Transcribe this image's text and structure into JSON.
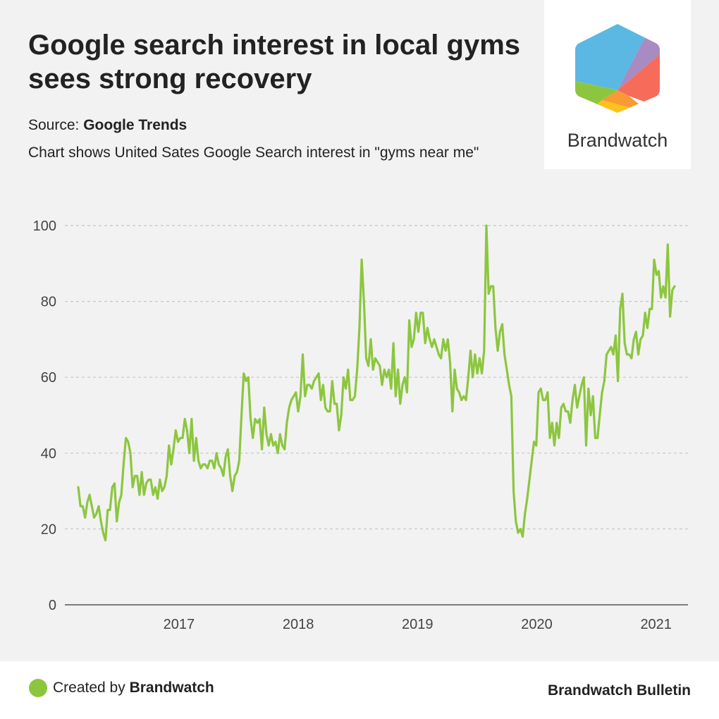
{
  "header": {
    "title": "Google search interest in local gyms sees strong recovery",
    "source_label": "Source:",
    "source_name": "Google Trends",
    "description": "Chart shows United Sates Google Search interest in \"gyms near me\""
  },
  "logo": {
    "name": "Brandwatch",
    "colors": [
      "#5BB8E2",
      "#A78BC2",
      "#F76B5B",
      "#F89A35",
      "#FBC21B",
      "#8CC63F"
    ]
  },
  "footer": {
    "created_label": "Created by",
    "created_brand": "Brandwatch",
    "right_text": "Brandwatch Bulletin",
    "dot_color": "#8CC63F"
  },
  "chart_data": {
    "type": "line",
    "x_unit": "year",
    "x_start": 2016.62,
    "x_end": 2021.62,
    "xticks": [
      2017,
      2018,
      2019,
      2020,
      2021
    ],
    "xtick_labels": [
      "2017",
      "2018",
      "2019",
      "2020",
      "2021"
    ],
    "yticks": [
      0,
      20,
      40,
      60,
      80,
      100
    ],
    "ylim": [
      0,
      100
    ],
    "grid": "horizontal dashed",
    "line_color": "#8CC63F",
    "values": [
      31,
      26,
      26,
      23,
      27,
      29,
      26,
      23,
      24,
      26,
      22,
      19,
      17,
      25,
      25,
      31,
      32,
      22,
      27,
      29,
      37,
      44,
      43,
      40,
      31,
      34,
      34,
      29,
      35,
      29,
      32,
      33,
      33,
      29,
      31,
      28,
      33,
      30,
      31,
      34,
      42,
      37,
      41,
      46,
      43,
      44,
      44,
      49,
      46,
      40,
      49,
      38,
      44,
      38,
      36,
      37,
      37,
      36,
      38,
      38,
      36,
      40,
      37,
      36,
      34,
      39,
      41,
      34,
      30,
      34,
      35,
      38,
      50,
      61,
      59,
      60,
      49,
      44,
      49,
      48,
      49,
      41,
      52,
      45,
      42,
      45,
      42,
      43,
      40,
      45,
      42,
      41,
      48,
      52,
      54,
      55,
      56,
      51,
      55,
      66,
      55,
      58,
      58,
      57,
      59,
      60,
      61,
      54,
      58,
      52,
      51,
      51,
      59,
      53,
      53,
      46,
      50,
      60,
      57,
      62,
      54,
      54,
      55,
      62,
      73,
      91,
      80,
      65,
      63,
      70,
      62,
      65,
      64,
      63,
      58,
      62,
      60,
      62,
      57,
      69,
      55,
      62,
      53,
      58,
      60,
      56,
      75,
      68,
      70,
      77,
      72,
      77,
      77,
      69,
      73,
      70,
      68,
      70,
      68,
      66,
      65,
      70,
      67,
      70,
      64,
      51,
      62,
      57,
      56,
      54,
      55,
      54,
      60,
      67,
      60,
      66,
      61,
      65,
      61,
      67,
      100,
      82,
      84,
      84,
      73,
      67,
      72,
      74,
      66,
      62,
      58,
      55,
      30,
      22,
      19,
      20,
      18,
      24,
      28,
      33,
      38,
      43,
      42,
      56,
      57,
      54,
      54,
      56,
      44,
      48,
      42,
      48,
      44,
      52,
      53,
      51,
      51,
      48,
      54,
      58,
      52,
      55,
      58,
      60,
      42,
      57,
      50,
      55,
      44,
      44,
      50,
      56,
      59,
      66,
      67,
      68,
      66,
      71,
      59,
      78,
      82,
      69,
      66,
      66,
      65,
      70,
      72,
      66,
      70,
      71,
      77,
      73,
      78,
      78,
      91,
      87,
      88,
      81,
      84,
      81,
      95,
      76,
      83,
      84
    ]
  }
}
